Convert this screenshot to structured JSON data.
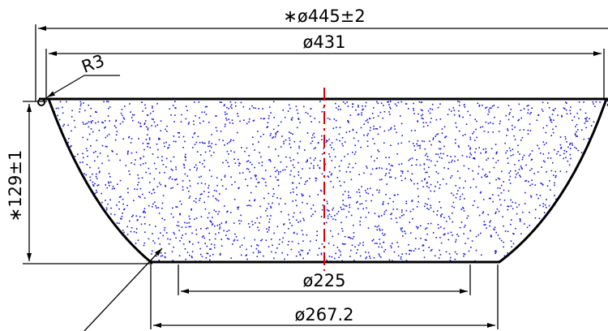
{
  "drawing": {
    "overall_diameter": "∗ø445±2",
    "top_diameter": "ø431",
    "fillet_radius": "R3",
    "height": "∗129±1",
    "inner_bottom_diameter": "ø225",
    "bottom_diameter": "ø267.2"
  },
  "colors": {
    "outline": "#000000",
    "centerline": "#e00000",
    "fill_dots": "#1515e0",
    "background": "#ffffff"
  }
}
